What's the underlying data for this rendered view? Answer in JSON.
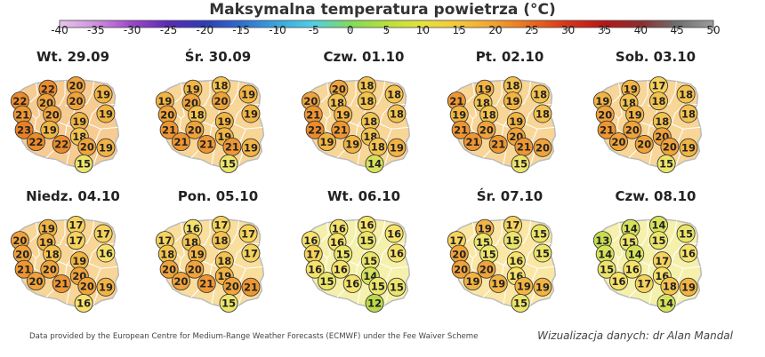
{
  "title": "Maksymalna temperatura powietrza (°C)",
  "scale": {
    "ticks": [
      "-40",
      "-35",
      "-30",
      "-25",
      "-20",
      "-15",
      "-10",
      "-5",
      "0",
      "5",
      "10",
      "15",
      "20",
      "25",
      "30",
      "35",
      "40",
      "45",
      "50"
    ],
    "gradient_stops": [
      "#e9c4ea",
      "#cf8fe0",
      "#9b46c9",
      "#5b2bb8",
      "#2c3cb5",
      "#2f6fd0",
      "#3aa6df",
      "#4fd0e6",
      "#7fdc5a",
      "#b9e03a",
      "#e8e23a",
      "#f6c63a",
      "#f3a02c",
      "#ea6a1c",
      "#d8331a",
      "#b51717",
      "#8e2e2e",
      "#6f6f6f",
      "#9d9d9d"
    ]
  },
  "panels": [
    {
      "date": "Wt. 29.09",
      "values": [
        22,
        20,
        19,
        22,
        20,
        20,
        19,
        21,
        20,
        19,
        23,
        19,
        18,
        22,
        22,
        20,
        19,
        15
      ]
    },
    {
      "date": "Śr. 30.09",
      "values": [
        19,
        18,
        19,
        19,
        20,
        20,
        19,
        20,
        18,
        19,
        21,
        20,
        19,
        21,
        21,
        21,
        19,
        15
      ]
    },
    {
      "date": "Czw. 01.10",
      "values": [
        20,
        18,
        18,
        20,
        18,
        18,
        18,
        21,
        19,
        18,
        22,
        21,
        18,
        19,
        19,
        18,
        19,
        14
      ]
    },
    {
      "date": "Pt. 02.10",
      "values": [
        19,
        18,
        18,
        21,
        18,
        19,
        18,
        19,
        18,
        19,
        21,
        20,
        20,
        21,
        21,
        21,
        20,
        15
      ]
    },
    {
      "date": "Sob. 03.10",
      "values": [
        19,
        17,
        18,
        19,
        18,
        18,
        18,
        20,
        19,
        18,
        21,
        20,
        20,
        20,
        20,
        20,
        19,
        15
      ]
    },
    {
      "date": "Niedz. 04.10",
      "values": [
        19,
        17,
        17,
        20,
        19,
        17,
        16,
        20,
        18,
        19,
        21,
        20,
        20,
        20,
        21,
        20,
        19,
        16
      ]
    },
    {
      "date": "Pon. 05.10",
      "values": [
        16,
        17,
        17,
        17,
        18,
        18,
        17,
        18,
        19,
        18,
        20,
        20,
        19,
        20,
        21,
        20,
        21,
        15
      ]
    },
    {
      "date": "Wt. 06.10",
      "values": [
        16,
        16,
        16,
        16,
        16,
        15,
        16,
        17,
        15,
        15,
        16,
        16,
        14,
        15,
        16,
        15,
        15,
        12
      ]
    },
    {
      "date": "Śr. 07.10",
      "values": [
        19,
        17,
        15,
        17,
        15,
        15,
        15,
        20,
        15,
        16,
        20,
        20,
        16,
        19,
        19,
        19,
        19,
        15
      ]
    },
    {
      "date": "Czw. 08.10",
      "values": [
        14,
        14,
        15,
        13,
        15,
        15,
        16,
        14,
        14,
        17,
        15,
        16,
        16,
        16,
        17,
        18,
        19,
        14
      ]
    }
  ],
  "footer": {
    "left": "Data provided by the European Centre for Medium-Range Weather Forecasts (ECMWF) under the Fee Waiver Scheme",
    "right": "Wizualizacja danych: dr Alan Mandal"
  }
}
